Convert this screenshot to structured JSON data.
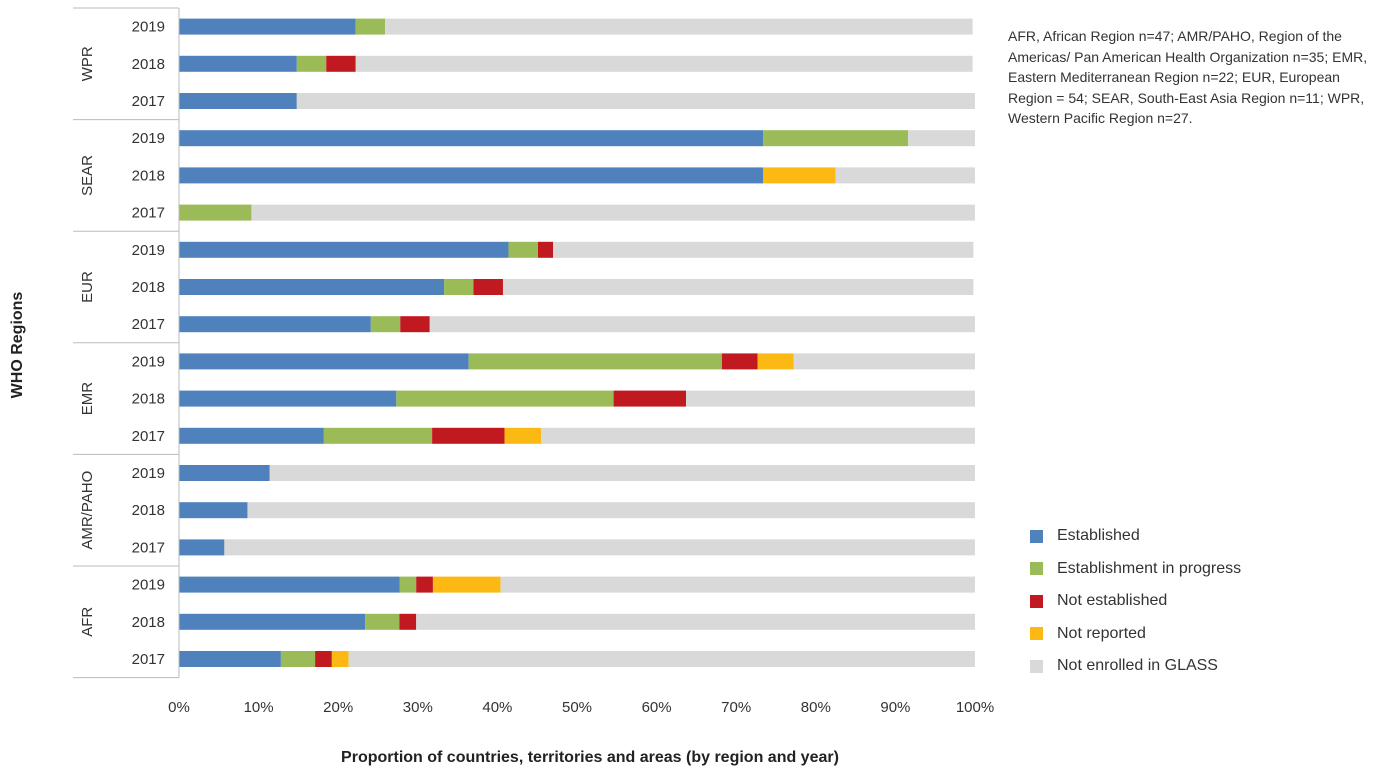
{
  "chart_data": {
    "type": "bar",
    "orientation": "horizontal",
    "stacked": true,
    "xlabel": "Proportion of countries, territories and areas (by region and year)",
    "ylabel": "WHO Regions",
    "x_ticks": [
      "0%",
      "10%",
      "20%",
      "30%",
      "40%",
      "50%",
      "60%",
      "70%",
      "80%",
      "90%",
      "100%"
    ],
    "xlim": [
      0,
      100
    ],
    "grid": false,
    "legend_position": "right",
    "note": "AFR, African Region n=47; AMR/PAHO, Region of the Americas/ Pan American Health Organization n=35; EMR, Eastern Mediterranean Region n=22; EUR, European Region = 54; SEAR, South-East Asia Region n=11; WPR, Western Pacific Region n=27.",
    "series_names": [
      "Established",
      "Establishment in progress",
      "Not established",
      "Not reported",
      "Not enrolled in GLASS"
    ],
    "colors": [
      "#4f81bd",
      "#9bbb59",
      "#c0191f",
      "#fdb913",
      "#d9d9d9"
    ],
    "groups": [
      {
        "region": "WPR",
        "rows": [
          {
            "year": "2019",
            "values": [
              22.2,
              3.7,
              0,
              0,
              73.8
            ]
          },
          {
            "year": "2018",
            "values": [
              14.8,
              3.7,
              3.7,
              0,
              77.5
            ]
          },
          {
            "year": "2017",
            "values": [
              14.8,
              0,
              0,
              0,
              85.2
            ]
          }
        ]
      },
      {
        "region": "SEAR",
        "rows": [
          {
            "year": "2019",
            "values": [
              73.4,
              18.2,
              0,
              0,
              8.4
            ]
          },
          {
            "year": "2018",
            "values": [
              73.4,
              0,
              0,
              9.1,
              17.5
            ]
          },
          {
            "year": "2017",
            "values": [
              0,
              9.1,
              0,
              0,
              90.9
            ]
          }
        ]
      },
      {
        "region": "EUR",
        "rows": [
          {
            "year": "2019",
            "values": [
              41.4,
              3.7,
              1.9,
              0,
              52.8
            ]
          },
          {
            "year": "2018",
            "values": [
              33.3,
              3.7,
              3.7,
              0,
              59.1
            ]
          },
          {
            "year": "2017",
            "values": [
              24.1,
              3.7,
              3.7,
              0,
              68.5
            ]
          }
        ]
      },
      {
        "region": "EMR",
        "rows": [
          {
            "year": "2019",
            "values": [
              36.4,
              31.8,
              4.5,
              4.5,
              22.8
            ]
          },
          {
            "year": "2018",
            "values": [
              27.3,
              27.3,
              9.1,
              0,
              36.3
            ]
          },
          {
            "year": "2017",
            "values": [
              18.2,
              13.6,
              9.1,
              4.6,
              54.5
            ]
          }
        ]
      },
      {
        "region": "AMR/PAHO",
        "rows": [
          {
            "year": "2019",
            "values": [
              11.4,
              0,
              0,
              0,
              88.6
            ]
          },
          {
            "year": "2018",
            "values": [
              8.6,
              0,
              0,
              0,
              91.4
            ]
          },
          {
            "year": "2017",
            "values": [
              5.7,
              0,
              0,
              0,
              94.3
            ]
          }
        ]
      },
      {
        "region": "AFR",
        "rows": [
          {
            "year": "2019",
            "values": [
              27.7,
              2.1,
              2.1,
              8.5,
              59.6
            ]
          },
          {
            "year": "2018",
            "values": [
              23.4,
              4.3,
              2.1,
              0,
              70.2
            ]
          },
          {
            "year": "2017",
            "values": [
              12.8,
              4.3,
              2.1,
              2.1,
              78.7
            ]
          }
        ]
      }
    ]
  }
}
